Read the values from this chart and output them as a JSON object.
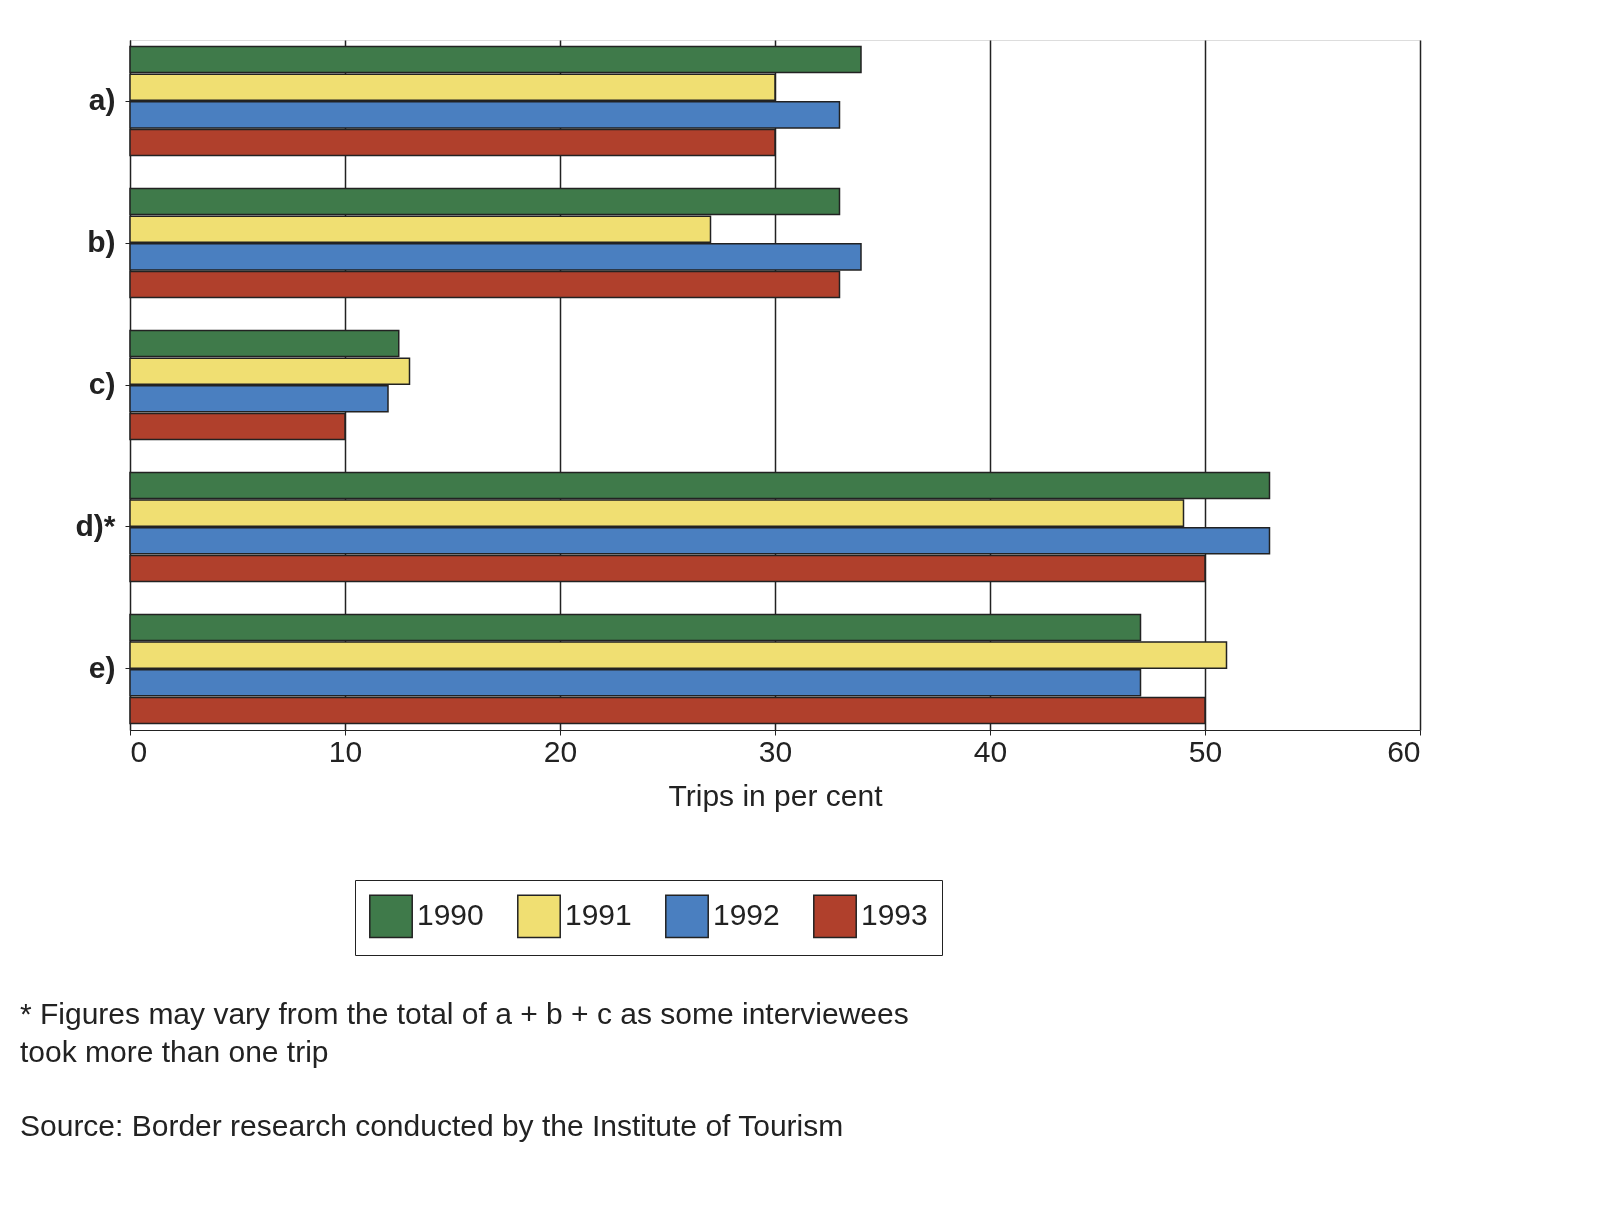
{
  "chart_data": {
    "type": "bar",
    "orientation": "horizontal",
    "xlabel": "Trips in per cent",
    "categories": [
      "a)",
      "b)",
      "c)",
      "d)*",
      "e)"
    ],
    "series": [
      {
        "name": "1990",
        "color": "#3f7a4a",
        "values": [
          34,
          33,
          12.5,
          53,
          47
        ]
      },
      {
        "name": "1991",
        "color": "#f0df72",
        "values": [
          30,
          27,
          13,
          49,
          51
        ]
      },
      {
        "name": "1992",
        "color": "#4a7fc0",
        "values": [
          33,
          34,
          12,
          53,
          47
        ]
      },
      {
        "name": "1993",
        "color": "#b0402c",
        "values": [
          30,
          33,
          10,
          50,
          50
        ]
      }
    ],
    "xlim": [
      0,
      60
    ],
    "xticks": [
      0,
      10,
      20,
      30,
      40,
      50,
      60
    ],
    "grid": "x",
    "legend": "bottom",
    "annotations": [
      "* Figures may vary from the total of a + b + c as some interviewees\n   took more than one trip",
      "Source: Border research conducted by the Institute of Tourism"
    ]
  }
}
